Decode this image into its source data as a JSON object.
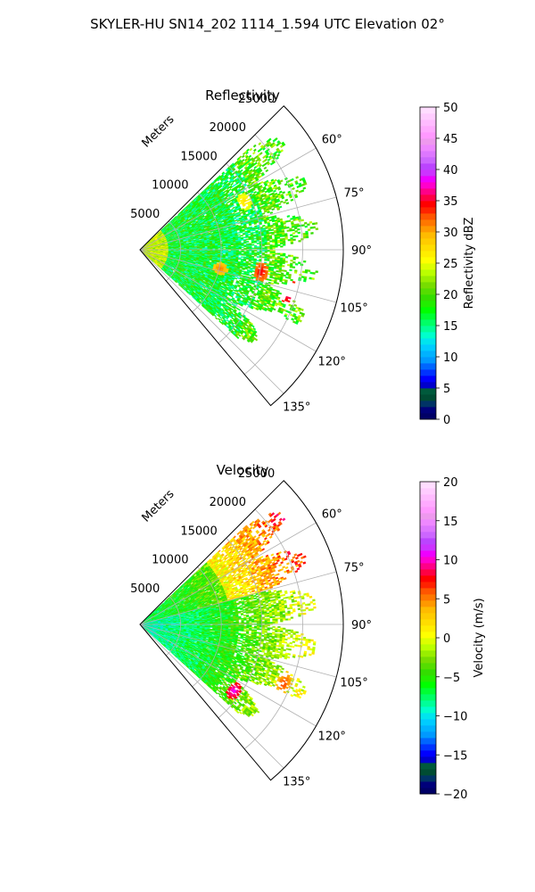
{
  "figure": {
    "suptitle": "SKYLER-HU  SN14_202  1114_1.594 UTC Elevation 02°"
  },
  "colors": {
    "grid": "#b0b0b0",
    "frame": "#000000",
    "background": "#ffffff"
  },
  "chart_data": [
    {
      "type": "heatmap",
      "title": "Reflectivity",
      "projection": "polar-sector",
      "range_label": "Meters",
      "range_ticks": [
        5000,
        10000,
        15000,
        20000,
        25000
      ],
      "range_tick_labels": [
        "5000",
        "10000",
        "15000",
        "20000",
        "25000"
      ],
      "range_max_m": 25000,
      "azimuth_ticks_deg": [
        60,
        75,
        90,
        105,
        120,
        135
      ],
      "azimuth_tick_labels": [
        "60°",
        "75°",
        "90°",
        "105°",
        "120°",
        "135°"
      ],
      "azimuth_range_deg": [
        45,
        140
      ],
      "colorbar": {
        "label": "Reflectivity dBZ",
        "range": [
          0,
          50
        ],
        "ticks": [
          0,
          5,
          10,
          15,
          20,
          25,
          30,
          35,
          40,
          45,
          50
        ],
        "tick_labels": [
          "0",
          "5",
          "10",
          "15",
          "20",
          "25",
          "30",
          "35",
          "40",
          "45",
          "50"
        ],
        "colors": [
          "#000066",
          "#00007a",
          "#003366",
          "#004c33",
          "#005a3c",
          "#0000cc",
          "#0000ff",
          "#0033ff",
          "#0066ff",
          "#0099ff",
          "#00b2ff",
          "#00ccff",
          "#00e5ee",
          "#00ffcc",
          "#00ff99",
          "#00ff66",
          "#00ff33",
          "#00ff00",
          "#22ee00",
          "#33dd00",
          "#55dd00",
          "#77dd00",
          "#99ee00",
          "#bbff00",
          "#ddff00",
          "#ffff00",
          "#ffee00",
          "#ffdd00",
          "#ffcc00",
          "#ffbb00",
          "#ff9900",
          "#ff7700",
          "#ff5500",
          "#ff2200",
          "#ff0000",
          "#ff0044",
          "#ff0088",
          "#ff00cc",
          "#ee00ff",
          "#cc33ff",
          "#bb44ff",
          "#cc66ff",
          "#dd77ff",
          "#ee88ff",
          "#ee99ee",
          "#ff99ff",
          "#ffaaff",
          "#ffbbff",
          "#ffccff",
          "#ffddff"
        ]
      },
      "field": {
        "coverage_az_deg": [
          47,
          132
        ],
        "coverage_range_m": [
          0,
          22000
        ],
        "typical_value": 17,
        "near_range_value": 24,
        "sparse_edge_value": 20,
        "hotspots": [
          {
            "az_deg": 100,
            "range_m": 15000,
            "value": 35
          },
          {
            "az_deg": 106,
            "range_m": 19000,
            "value": 37
          },
          {
            "az_deg": 103,
            "range_m": 10000,
            "value": 32
          },
          {
            "az_deg": 65,
            "range_m": 14000,
            "value": 28
          }
        ]
      }
    },
    {
      "type": "heatmap",
      "title": "Velocity",
      "projection": "polar-sector",
      "range_label": "Meters",
      "range_ticks": [
        5000,
        10000,
        15000,
        20000,
        25000
      ],
      "range_tick_labels": [
        "5000",
        "10000",
        "15000",
        "20000",
        "25000"
      ],
      "range_max_m": 25000,
      "azimuth_ticks_deg": [
        60,
        75,
        90,
        105,
        120,
        135
      ],
      "azimuth_tick_labels": [
        "60°",
        "75°",
        "90°",
        "105°",
        "120°",
        "135°"
      ],
      "azimuth_range_deg": [
        45,
        140
      ],
      "colorbar": {
        "label": "Velocity (m/s)",
        "range": [
          -20,
          20
        ],
        "ticks": [
          -20,
          -15,
          -10,
          -5,
          0,
          5,
          10,
          15,
          20
        ],
        "tick_labels": [
          "−20",
          "−15",
          "−10",
          "−5",
          "0",
          "5",
          "10",
          "15",
          "20"
        ],
        "colors": [
          "#000066",
          "#00007a",
          "#003366",
          "#004c33",
          "#005a3c",
          "#0000cc",
          "#0000ff",
          "#0033ff",
          "#0066ff",
          "#0099ff",
          "#00b2ff",
          "#00ccff",
          "#00e5ee",
          "#00ffcc",
          "#00ff99",
          "#00ff66",
          "#00ff33",
          "#00ff00",
          "#22ee00",
          "#33dd00",
          "#55dd00",
          "#77dd00",
          "#99ee00",
          "#bbff00",
          "#ddff00",
          "#ffff00",
          "#ffee00",
          "#ffdd00",
          "#ffcc00",
          "#ffbb00",
          "#ff9900",
          "#ff7700",
          "#ff5500",
          "#ff2200",
          "#ff0000",
          "#ff0044",
          "#ff0088",
          "#ff00cc",
          "#ee00ff",
          "#cc33ff",
          "#bb44ff",
          "#cc66ff",
          "#dd77ff",
          "#ee88ff",
          "#ee99ee",
          "#ff99ff",
          "#ffaaff",
          "#ffbbff",
          "#ffccff",
          "#ffddff"
        ]
      },
      "field": {
        "coverage_az_deg": [
          47,
          132
        ],
        "coverage_range_m": [
          0,
          22000
        ],
        "near_range_value": -9,
        "far_range_value": 1,
        "hotspots": [
          {
            "az_deg": 112,
            "range_m": 19000,
            "value": 7
          },
          {
            "az_deg": 125,
            "range_m": 14000,
            "value": 11
          }
        ]
      }
    }
  ]
}
